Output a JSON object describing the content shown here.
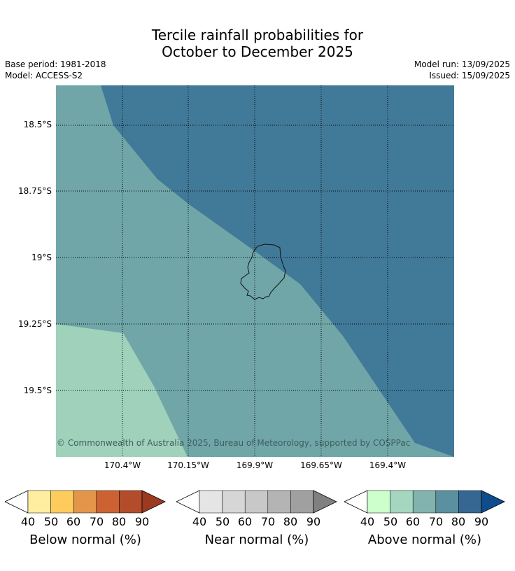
{
  "header": {
    "title_line1": "Tercile rainfall probabilities for",
    "title_line2": "October to December 2025",
    "base_period": "Base period: 1981-2018",
    "model": "Model: ACCESS-S2",
    "model_run": "Model run: 13/09/2025",
    "issued": "Issued: 15/09/2025"
  },
  "map": {
    "lat_labels": [
      "18.5°S",
      "18.75°S",
      "19°S",
      "19.25°S",
      "19.5°S"
    ],
    "lon_labels": [
      "170.4°W",
      "170.15°W",
      "169.9°W",
      "169.65°W",
      "169.4°W"
    ],
    "copyright": "© Commonwealth of Australia 2025, Bureau of Meteorology, supported by COSPPac",
    "colors": {
      "above_60": "#a0d1bb",
      "above_70": "#70a6a7",
      "above_80": "#417a98"
    }
  },
  "legends": [
    {
      "title": "Below normal (%)",
      "ticks": [
        "40",
        "50",
        "60",
        "70",
        "80",
        "90"
      ],
      "colors": [
        "#ffffff",
        "#ffeda0",
        "#fecc5c",
        "#e3954a",
        "#cc6232",
        "#b34c2a",
        "#9c3a20"
      ]
    },
    {
      "title": "Near normal (%)",
      "ticks": [
        "40",
        "50",
        "60",
        "70",
        "80",
        "90"
      ],
      "colors": [
        "#ffffff",
        "#e5e5e5",
        "#d6d6d6",
        "#c8c8c8",
        "#b4b4b4",
        "#a0a0a0",
        "#808080"
      ]
    },
    {
      "title": "Above normal (%)",
      "ticks": [
        "40",
        "50",
        "60",
        "70",
        "80",
        "90"
      ],
      "colors": [
        "#ffffff",
        "#ccffcc",
        "#a5d6bf",
        "#82b3ae",
        "#5a909f",
        "#356792",
        "#0f4c8c"
      ]
    }
  ]
}
